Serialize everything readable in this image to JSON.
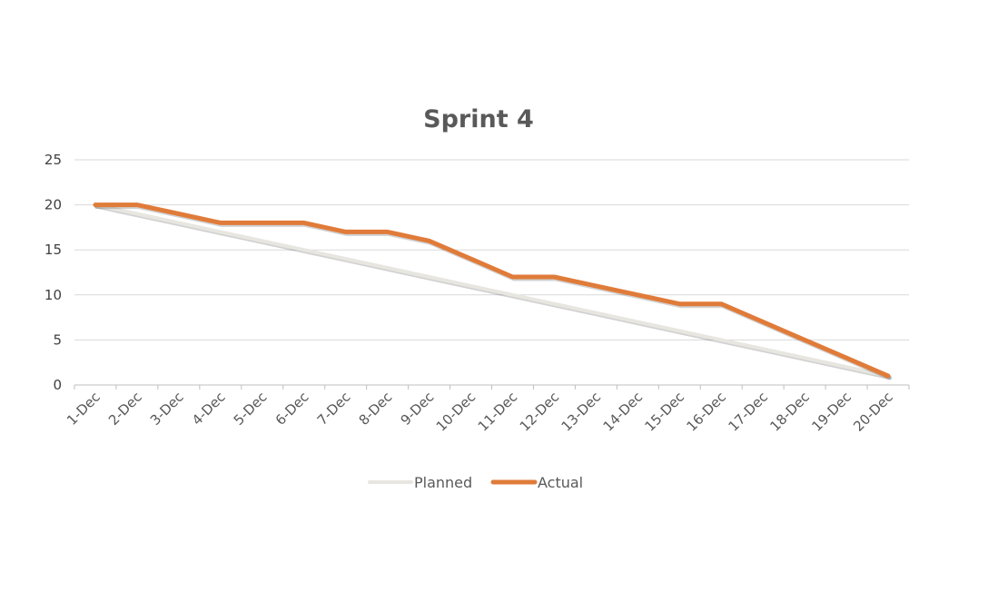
{
  "chart_data": {
    "type": "line",
    "title": "Sprint 4",
    "xlabel": "",
    "ylabel": "",
    "categories": [
      "1-Dec",
      "2-Dec",
      "3-Dec",
      "4-Dec",
      "5-Dec",
      "6-Dec",
      "7-Dec",
      "8-Dec",
      "9-Dec",
      "10-Dec",
      "11-Dec",
      "12-Dec",
      "13-Dec",
      "14-Dec",
      "15-Dec",
      "16-Dec",
      "17-Dec",
      "18-Dec",
      "19-Dec",
      "20-Dec"
    ],
    "ylim": [
      0,
      25
    ],
    "yticks": [
      "0",
      "5",
      "10",
      "15",
      "20",
      "25"
    ],
    "grid": true,
    "legend_position": "bottom",
    "series": [
      {
        "name": "Planned",
        "color": "#e7e6e0",
        "values": [
          20,
          19,
          18,
          17,
          16,
          15,
          14,
          13,
          12,
          11,
          10,
          9,
          8,
          7,
          6,
          5,
          4,
          3,
          2,
          1
        ]
      },
      {
        "name": "Actual",
        "color": "#e07b39",
        "values": [
          20,
          20,
          19,
          18,
          18,
          18,
          17,
          17,
          16,
          14,
          12,
          12,
          11,
          10,
          9,
          9,
          7,
          5,
          3,
          1
        ]
      }
    ]
  }
}
